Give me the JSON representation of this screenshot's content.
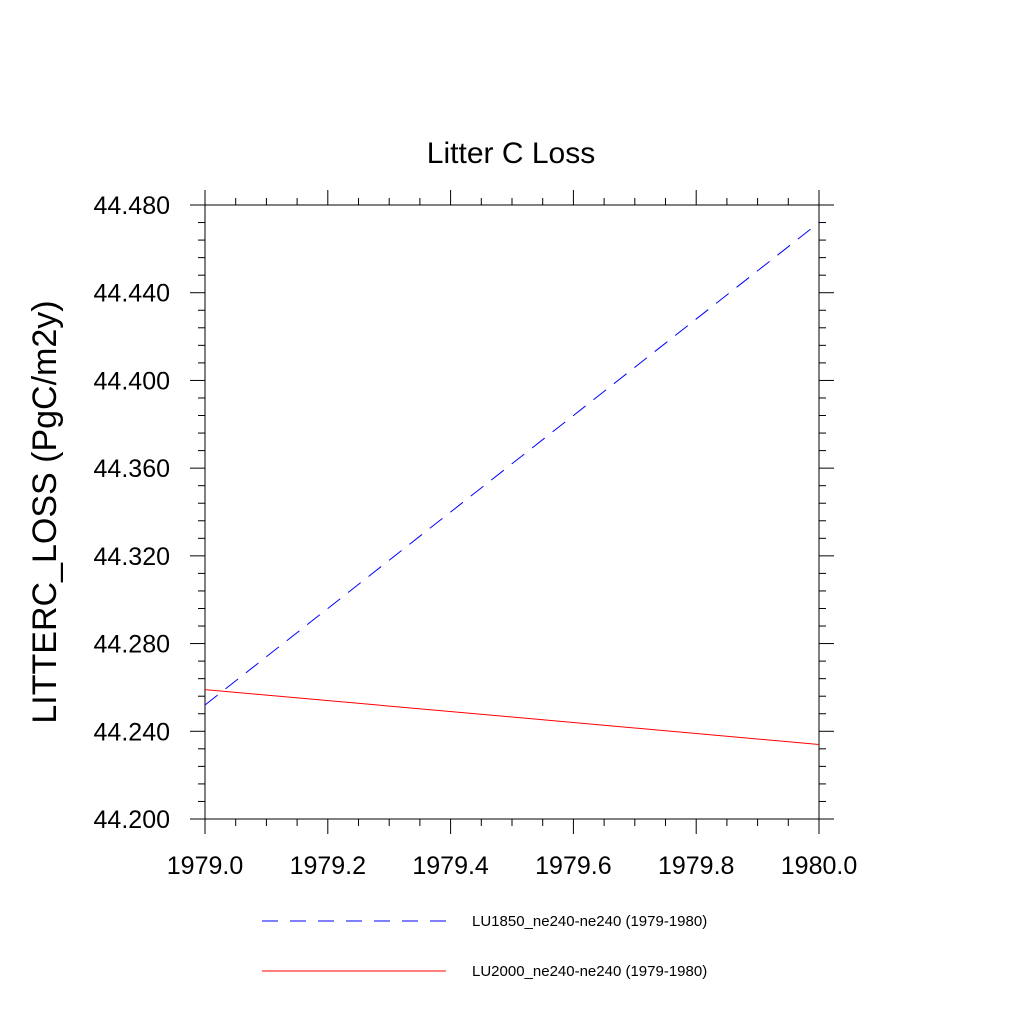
{
  "chart_data": {
    "type": "line",
    "title": "Litter C Loss",
    "xlabel": "",
    "ylabel": "LITTERC_LOSS  (PgC/m2y)",
    "xlim": [
      1979.0,
      1980.0
    ],
    "ylim": [
      44.2,
      44.48
    ],
    "x_ticks": [
      1979.0,
      1979.2,
      1979.4,
      1979.6,
      1979.8,
      1980.0
    ],
    "x_tick_labels": [
      "1979.0",
      "1979.2",
      "1979.4",
      "1979.6",
      "1979.8",
      "1980.0"
    ],
    "y_ticks": [
      44.2,
      44.24,
      44.28,
      44.32,
      44.36,
      44.4,
      44.44,
      44.48
    ],
    "y_tick_labels": [
      "44.200",
      "44.240",
      "44.280",
      "44.320",
      "44.360",
      "44.400",
      "44.440",
      "44.480"
    ],
    "grid": false,
    "legend_placement": "bottom",
    "series": [
      {
        "name": "LU1850_ne240-ne240 (1979-1980)",
        "x": [
          1979.0,
          1980.0
        ],
        "values": [
          44.252,
          44.472
        ],
        "color": "#0000ff",
        "dash": "dashed"
      },
      {
        "name": "LU2000_ne240-ne240 (1979-1980)",
        "x": [
          1979.0,
          1980.0
        ],
        "values": [
          44.259,
          44.234
        ],
        "color": "#ff0000",
        "dash": "solid"
      }
    ]
  }
}
